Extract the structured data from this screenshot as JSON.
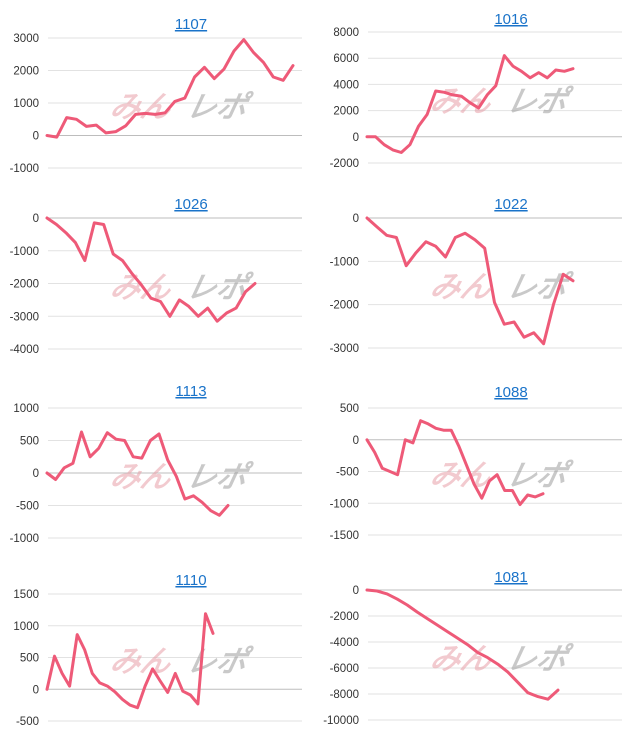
{
  "theme": {
    "line_color": "#ee5a78",
    "title_color": "#1a73c9"
  },
  "watermark": {
    "part1": "みん",
    "part2": "レポ"
  },
  "chart_data": [
    {
      "type": "line",
      "title": "1107",
      "yticks": [
        3000,
        2000,
        1000,
        0,
        -1000
      ],
      "ylim": [
        -1000,
        3000
      ],
      "series": [
        {
          "values": [
            0,
            -50,
            550,
            500,
            280,
            320,
            80,
            120,
            300,
            650,
            680,
            650,
            700,
            1050,
            1150,
            1800,
            2100,
            1750,
            2050,
            2600,
            2950,
            2550,
            2250,
            1800,
            1700,
            2150
          ]
        }
      ]
    },
    {
      "type": "line",
      "title": "1016",
      "yticks": [
        8000,
        6000,
        4000,
        2000,
        0,
        -2000
      ],
      "ylim": [
        -2000,
        8000
      ],
      "series": [
        {
          "values": [
            0,
            0,
            -600,
            -1000,
            -1200,
            -600,
            800,
            1700,
            3500,
            3400,
            3200,
            3100,
            2600,
            2200,
            3200,
            3900,
            6200,
            5400,
            5000,
            4500,
            4900,
            4500,
            5100,
            5000,
            5200
          ]
        }
      ]
    },
    {
      "type": "line",
      "title": "1026",
      "yticks": [
        0,
        -1000,
        -2000,
        -3000,
        -4000
      ],
      "ylim": [
        -4000,
        0
      ],
      "series": [
        {
          "values": [
            0,
            -200,
            -450,
            -750,
            -1300,
            -150,
            -200,
            -1100,
            -1300,
            -1700,
            -2050,
            -2450,
            -2550,
            -3000,
            -2500,
            -2700,
            -3000,
            -2750,
            -3150,
            -2900,
            -2750,
            -2250,
            -2000
          ]
        }
      ]
    },
    {
      "type": "line",
      "title": "1022",
      "yticks": [
        0,
        -1000,
        -2000,
        -3000
      ],
      "ylim": [
        -3000,
        0
      ],
      "series": [
        {
          "values": [
            0,
            -200,
            -400,
            -450,
            -1100,
            -800,
            -550,
            -650,
            -900,
            -450,
            -350,
            -500,
            -700,
            -1950,
            -2450,
            -2400,
            -2750,
            -2650,
            -2900,
            -2000,
            -1300,
            -1450
          ]
        }
      ]
    },
    {
      "type": "line",
      "title": "1113",
      "yticks": [
        1000,
        500,
        0,
        -500,
        -1000
      ],
      "ylim": [
        -1000,
        1000
      ],
      "series": [
        {
          "values": [
            0,
            -100,
            80,
            150,
            630,
            250,
            380,
            620,
            520,
            500,
            250,
            230,
            500,
            600,
            200,
            -50,
            -400,
            -350,
            -450,
            -580,
            -650,
            -500
          ]
        }
      ]
    },
    {
      "type": "line",
      "title": "1088",
      "yticks": [
        500,
        0,
        -500,
        -1000,
        -1500
      ],
      "ylim": [
        -1500,
        500
      ],
      "series": [
        {
          "values": [
            0,
            -200,
            -450,
            -500,
            -550,
            0,
            -50,
            300,
            250,
            180,
            150,
            150,
            -100,
            -400,
            -700,
            -920,
            -650,
            -550,
            -800,
            -800,
            -1020,
            -870,
            -900,
            -850
          ]
        }
      ]
    },
    {
      "type": "line",
      "title": "1110",
      "yticks": [
        1500,
        1000,
        500,
        0,
        -500
      ],
      "ylim": [
        -500,
        1500
      ],
      "series": [
        {
          "values": [
            0,
            520,
            250,
            50,
            860,
            620,
            250,
            100,
            50,
            -40,
            -160,
            -250,
            -290,
            50,
            320,
            130,
            -50,
            250,
            -30,
            -90,
            -230,
            1190,
            880
          ]
        }
      ]
    },
    {
      "type": "line",
      "title": "1081",
      "yticks": [
        0,
        -2000,
        -4000,
        -6000,
        -8000,
        -10000
      ],
      "ylim": [
        -10000,
        0
      ],
      "series": [
        {
          "values": [
            0,
            -80,
            -300,
            -700,
            -1150,
            -1700,
            -2200,
            -2700,
            -3200,
            -3700,
            -4200,
            -4800,
            -5200,
            -5700,
            -6300,
            -7100,
            -7900,
            -8200,
            -8400,
            -7700
          ]
        }
      ]
    }
  ]
}
